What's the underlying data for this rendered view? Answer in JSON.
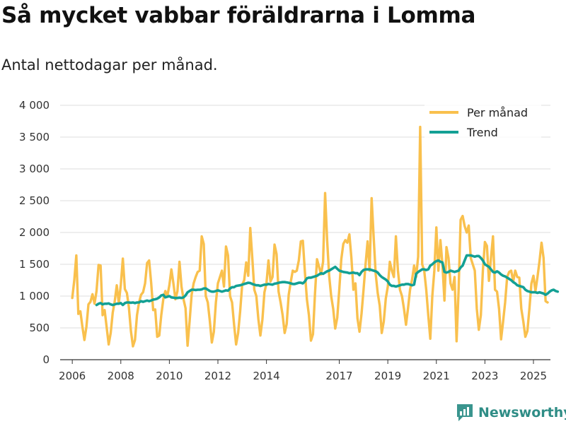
{
  "chart_data": {
    "type": "line",
    "title": "Så mycket vabbar föräldrarna i Lomma",
    "subtitle": "Antal nettodagar per månad.",
    "xlabel": "",
    "ylabel": "",
    "xlim": [
      2005.5,
      2025.7
    ],
    "ylim": [
      0,
      4000
    ],
    "yticks": [
      0,
      500,
      1000,
      1500,
      2000,
      2500,
      3000,
      3500,
      4000
    ],
    "ytick_labels": [
      "0",
      "500",
      "1 000",
      "1 500",
      "2 000",
      "2 500",
      "3 000",
      "3 500",
      "4 000"
    ],
    "xticks": [
      2006,
      2008,
      2010,
      2012,
      2014,
      2017,
      2019,
      2021,
      2023,
      2025
    ],
    "xtick_labels": [
      "2006",
      "2008",
      "2010",
      "2012",
      "2014",
      "2017",
      "2019",
      "2021",
      "2023",
      "2025"
    ],
    "grid": true,
    "legend_position": "top-right",
    "series": [
      {
        "name": "Per månad",
        "color": "#f9c04d",
        "x_start": 2006.0,
        "x_step": 0.0833333,
        "values": [
          970,
          1250,
          1640,
          720,
          760,
          520,
          310,
          520,
          870,
          910,
          1030,
          880,
          1080,
          1490,
          1480,
          700,
          780,
          510,
          240,
          420,
          740,
          920,
          1170,
          890,
          1180,
          1590,
          1110,
          1050,
          820,
          450,
          210,
          310,
          700,
          900,
          1020,
          1060,
          1200,
          1520,
          1560,
          1210,
          780,
          790,
          360,
          380,
          700,
          950,
          1080,
          1000,
          1170,
          1420,
          1200,
          950,
          1080,
          1540,
          1150,
          950,
          810,
          220,
          600,
          1020,
          1200,
          1300,
          1380,
          1400,
          1940,
          1820,
          1000,
          900,
          610,
          270,
          440,
          900,
          1200,
          1300,
          1400,
          1150,
          1780,
          1640,
          1000,
          900,
          550,
          240,
          420,
          760,
          1180,
          1250,
          1530,
          1320,
          2070,
          1600,
          1100,
          1000,
          640,
          380,
          630,
          1060,
          1200,
          1560,
          1230,
          1300,
          1810,
          1660,
          1070,
          900,
          700,
          420,
          560,
          1020,
          1220,
          1400,
          1380,
          1400,
          1560,
          1860,
          1870,
          1380,
          950,
          700,
          300,
          400,
          1040,
          1580,
          1460,
          1340,
          1540,
          2620,
          1880,
          1320,
          1000,
          800,
          490,
          660,
          1100,
          1580,
          1820,
          1880,
          1840,
          1970,
          1600,
          1100,
          1200,
          650,
          440,
          720,
          1100,
          1500,
          1860,
          1400,
          2540,
          1930,
          1350,
          1050,
          850,
          420,
          600,
          960,
          1150,
          1540,
          1400,
          1300,
          1940,
          1400,
          1100,
          1000,
          800,
          550,
          810,
          1100,
          1260,
          1480,
          1300,
          1620,
          3660,
          1500,
          1400,
          1100,
          700,
          330,
          1000,
          1400,
          2080,
          1400,
          1880,
          1500,
          930,
          1770,
          1600,
          1200,
          1100,
          1300,
          290,
          1100,
          2200,
          2260,
          2100,
          2000,
          2110,
          1600,
          1500,
          1400,
          800,
          470,
          700,
          1400,
          1850,
          1790,
          1240,
          1600,
          1940,
          1100,
          1070,
          800,
          320,
          600,
          900,
          1300,
          1380,
          1400,
          1230,
          1400,
          1300,
          1290,
          800,
          600,
          360,
          450,
          800,
          1200,
          1320,
          1080,
          1300,
          1550,
          1840,
          1600,
          920,
          900
        ]
      },
      {
        "name": "Trend",
        "color": "#13a094",
        "x_start": 2007.0,
        "x_step": 0.0833333,
        "values": [
          860,
          880,
          890,
          870,
          880,
          880,
          885,
          870,
          860,
          870,
          880,
          880,
          890,
          860,
          890,
          900,
          900,
          895,
          900,
          890,
          900,
          900,
          920,
          910,
          920,
          930,
          920,
          930,
          945,
          950,
          960,
          980,
          1010,
          1020,
          980,
          990,
          1000,
          980,
          975,
          970,
          970,
          975,
          970,
          980,
          1010,
          1060,
          1080,
          1100,
          1100,
          1095,
          1100,
          1100,
          1105,
          1120,
          1120,
          1100,
          1080,
          1070,
          1070,
          1080,
          1090,
          1080,
          1070,
          1080,
          1090,
          1085,
          1120,
          1140,
          1140,
          1160,
          1165,
          1170,
          1180,
          1190,
          1200,
          1210,
          1205,
          1190,
          1180,
          1170,
          1170,
          1160,
          1170,
          1180,
          1180,
          1190,
          1185,
          1180,
          1195,
          1200,
          1210,
          1215,
          1220,
          1220,
          1215,
          1210,
          1200,
          1190,
          1190,
          1200,
          1210,
          1210,
          1200,
          1230,
          1280,
          1290,
          1290,
          1300,
          1310,
          1320,
          1340,
          1360,
          1350,
          1370,
          1390,
          1400,
          1420,
          1440,
          1460,
          1430,
          1400,
          1390,
          1380,
          1375,
          1370,
          1360,
          1365,
          1370,
          1360,
          1360,
          1330,
          1380,
          1410,
          1420,
          1420,
          1420,
          1410,
          1400,
          1390,
          1370,
          1330,
          1300,
          1280,
          1260,
          1230,
          1180,
          1160,
          1160,
          1150,
          1160,
          1170,
          1180,
          1180,
          1190,
          1190,
          1180,
          1170,
          1180,
          1350,
          1380,
          1400,
          1420,
          1420,
          1410,
          1420,
          1480,
          1500,
          1530,
          1550,
          1560,
          1540,
          1530,
          1380,
          1370,
          1380,
          1400,
          1390,
          1380,
          1390,
          1400,
          1450,
          1480,
          1560,
          1640,
          1640,
          1640,
          1630,
          1620,
          1630,
          1630,
          1600,
          1560,
          1500,
          1480,
          1460,
          1420,
          1380,
          1370,
          1390,
          1370,
          1340,
          1320,
          1310,
          1290,
          1270,
          1250,
          1220,
          1200,
          1170,
          1160,
          1150,
          1140,
          1100,
          1080,
          1070,
          1060,
          1060,
          1060,
          1050,
          1060,
          1050,
          1040,
          1020,
          1040,
          1070,
          1090,
          1100,
          1080,
          1070
        ]
      }
    ]
  },
  "branding": {
    "name": "Newsworthy",
    "icon": "newsworthy-logo-icon",
    "color": "#2f8d86"
  }
}
